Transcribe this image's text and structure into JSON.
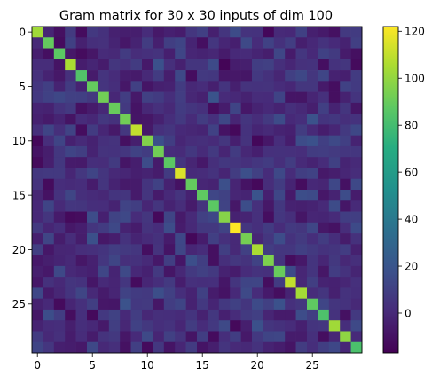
{
  "chart_data": {
    "type": "heatmap",
    "title": "Gram matrix for 30 x 30 inputs of dim 100",
    "xlabel": "",
    "ylabel": "",
    "n": 30,
    "diagonal": [
      103,
      89,
      87,
      105,
      84,
      89,
      92,
      90,
      92,
      110,
      96,
      92,
      87,
      115,
      89,
      88,
      87,
      97,
      122,
      93,
      105,
      95,
      90,
      110,
      104,
      88,
      83,
      103,
      99,
      82
    ],
    "off_diagonal_range": [
      -17,
      20
    ],
    "x_ticks": [
      0,
      5,
      10,
      15,
      20,
      25
    ],
    "y_ticks": [
      0,
      5,
      10,
      15,
      20,
      25
    ],
    "colorbar": {
      "min": -17,
      "max": 122,
      "ticks": [
        0,
        20,
        40,
        60,
        80,
        100,
        120
      ]
    },
    "colormap": "viridis",
    "grid": false
  }
}
